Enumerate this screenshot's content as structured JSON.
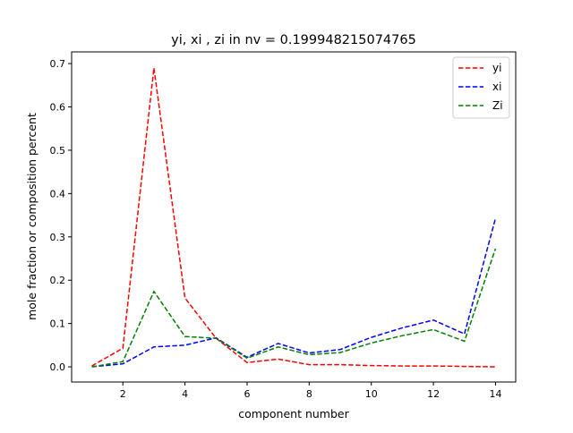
{
  "chart_data": {
    "type": "line",
    "title": "yi, xi , zi in nv = 0.199948215074765",
    "xlabel": "component number",
    "ylabel": "mole fraction or composition percent",
    "xlim": [
      0.35,
      14.65
    ],
    "ylim": [
      -0.035,
      0.727
    ],
    "xticks": [
      2,
      4,
      6,
      8,
      10,
      12,
      14
    ],
    "xtick_labels": [
      "2",
      "4",
      "6",
      "8",
      "10",
      "12",
      "14"
    ],
    "yticks": [
      0.0,
      0.1,
      0.2,
      0.3,
      0.4,
      0.5,
      0.6,
      0.7
    ],
    "ytick_labels": [
      "0.0",
      "0.1",
      "0.2",
      "0.3",
      "0.4",
      "0.5",
      "0.6",
      "0.7"
    ],
    "grid": false,
    "legend_position": "top-right",
    "x": [
      1,
      2,
      3,
      4,
      5,
      6,
      7,
      8,
      9,
      10,
      11,
      12,
      13,
      14
    ],
    "series": [
      {
        "name": "yi",
        "color": "#ff0000",
        "style": "dashed",
        "values": [
          0.002,
          0.043,
          0.69,
          0.159,
          0.066,
          0.01,
          0.018,
          0.005,
          0.005,
          0.003,
          0.002,
          0.002,
          0.001,
          0.0
        ]
      },
      {
        "name": "xi",
        "color": "#0000ff",
        "style": "dashed",
        "values": [
          0.0,
          0.007,
          0.046,
          0.05,
          0.067,
          0.022,
          0.054,
          0.032,
          0.04,
          0.068,
          0.09,
          0.108,
          0.076,
          0.343
        ]
      },
      {
        "name": "Zi",
        "color": "#008000",
        "style": "dashed",
        "values": [
          0.0,
          0.012,
          0.174,
          0.07,
          0.066,
          0.02,
          0.046,
          0.028,
          0.033,
          0.055,
          0.072,
          0.086,
          0.059,
          0.273
        ]
      }
    ]
  }
}
